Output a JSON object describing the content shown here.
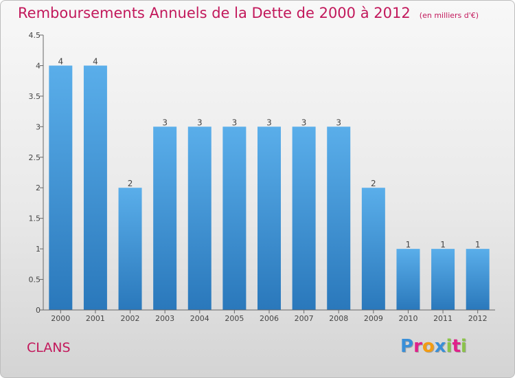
{
  "chart_data": {
    "type": "bar",
    "title": "Remboursements Annuels de la Dette de 2000 à 2012",
    "subtitle": "(en milliers d'€)",
    "categories": [
      "2000",
      "2001",
      "2002",
      "2003",
      "2004",
      "2005",
      "2006",
      "2007",
      "2008",
      "2009",
      "2010",
      "2011",
      "2012"
    ],
    "values": [
      4,
      4,
      2,
      3,
      3,
      3,
      3,
      3,
      3,
      2,
      1,
      1,
      1
    ],
    "data_labels": [
      "4",
      "4",
      "2",
      "3",
      "3",
      "3",
      "3",
      "3",
      "3",
      "2",
      "1",
      "1",
      "1"
    ],
    "y_ticks": [
      "0",
      "0.5",
      "1",
      "1.5",
      "2",
      "2.5",
      "3",
      "3.5",
      "4",
      "4.5"
    ],
    "ylim": [
      0,
      4.5
    ],
    "grid": false,
    "bar_color": "#4a9fe0"
  },
  "footer": {
    "city": "CLANS",
    "logo_letters": [
      "P",
      "r",
      "o",
      "x",
      "i",
      "t",
      "i"
    ],
    "logo_colors": [
      "#3a8fd8",
      "#e0218a",
      "#f39c12",
      "#3a8fd8",
      "#8bc34a",
      "#e0218a",
      "#8bc34a"
    ]
  },
  "colors": {
    "accent": "#c2185b",
    "axis": "#555555"
  }
}
